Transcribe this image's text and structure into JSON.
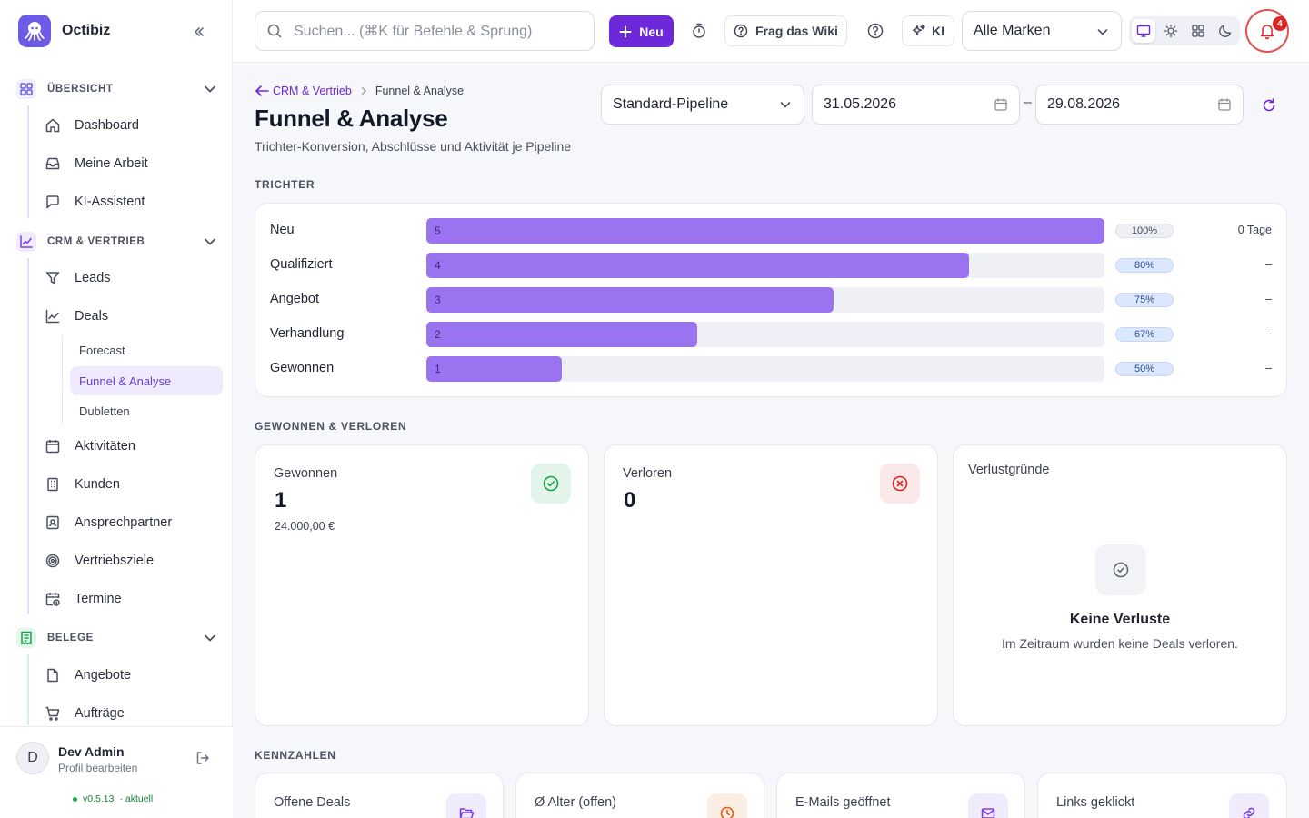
{
  "app": {
    "name": "Octibiz",
    "version": "v0.5.13",
    "version_status": "· aktuell"
  },
  "search": {
    "placeholder": "Suchen... (⌘K für Befehle & Sprung)"
  },
  "topbar": {
    "new_label": "Neu",
    "wiki_label": "Frag das Wiki",
    "ki_label": "KI",
    "brand_select": "Alle Marken",
    "notifications": "4",
    "theme_active": "desktop"
  },
  "sidebar": {
    "sections": [
      {
        "label": "ÜBERSICHT",
        "items": [
          "Dashboard",
          "Meine Arbeit",
          "KI-Assistent"
        ]
      },
      {
        "label": "CRM & VERTRIEB",
        "items": [
          "Leads",
          "Deals",
          "Aktivitäten",
          "Kunden",
          "Ansprechpartner",
          "Vertriebsziele",
          "Termine"
        ],
        "deal_subitems": [
          "Forecast",
          "Funnel & Analyse",
          "Dubletten"
        ]
      },
      {
        "label": "BELEGE",
        "items": [
          "Angebote",
          "Aufträge"
        ]
      }
    ],
    "active": "Funnel & Analyse"
  },
  "user": {
    "initial": "D",
    "name": "Dev Admin",
    "edit_label": "Profil bearbeiten"
  },
  "page": {
    "breadcrumb_parent": "CRM & Vertrieb",
    "breadcrumb_current": "Funnel & Analyse",
    "title": "Funnel & Analyse",
    "subtitle": "Trichter-Konversion, Abschlüsse und Aktivität je Pipeline",
    "pipeline": "Standard-Pipeline",
    "date_from": "31.05.2026",
    "date_to": "29.08.2026",
    "date_sep": "–"
  },
  "funnel": {
    "section_label": "TRICHTER",
    "max": 5,
    "stages": [
      {
        "name": "Neu",
        "count": 5,
        "label": "5",
        "rate": "100%",
        "duration": "0 Tage"
      },
      {
        "name": "Qualifiziert",
        "count": 4,
        "label": "4",
        "rate": "80%",
        "duration": "–"
      },
      {
        "name": "Angebot",
        "count": 3,
        "label": "3",
        "rate": "75%",
        "duration": "–"
      },
      {
        "name": "Verhandlung",
        "count": 2,
        "label": "2",
        "rate": "67%",
        "duration": "–"
      },
      {
        "name": "Gewonnen",
        "count": 1,
        "label": "1",
        "rate": "50%",
        "duration": "–"
      }
    ]
  },
  "winloss": {
    "section_label": "GEWONNEN & VERLOREN",
    "won": {
      "label": "Gewonnen",
      "value": "1",
      "amount": "24.000,00 €"
    },
    "lost": {
      "label": "Verloren",
      "value": "0"
    },
    "reasons": {
      "label": "Verlustgründe",
      "empty_title": "Keine Verluste",
      "empty_text": "Im Zeitraum wurden keine Deals verloren."
    }
  },
  "kpis": {
    "section_label": "KENNZAHLEN",
    "items": [
      {
        "label": "Offene Deals",
        "icon": "folder-open-icon",
        "color": "#7c3aed"
      },
      {
        "label": "Ø Alter (offen)",
        "icon": "clock-icon",
        "color": "#ea580c"
      },
      {
        "label": "E-Mails geöffnet",
        "icon": "mail-icon",
        "color": "#7c3aed"
      },
      {
        "label": "Links geklickt",
        "icon": "link-icon",
        "color": "#7c3aed"
      }
    ]
  },
  "colors": {
    "accent": "#6d28d9",
    "bar": "#9a73f0",
    "won": "#16a34a",
    "lost": "#dc2626"
  }
}
